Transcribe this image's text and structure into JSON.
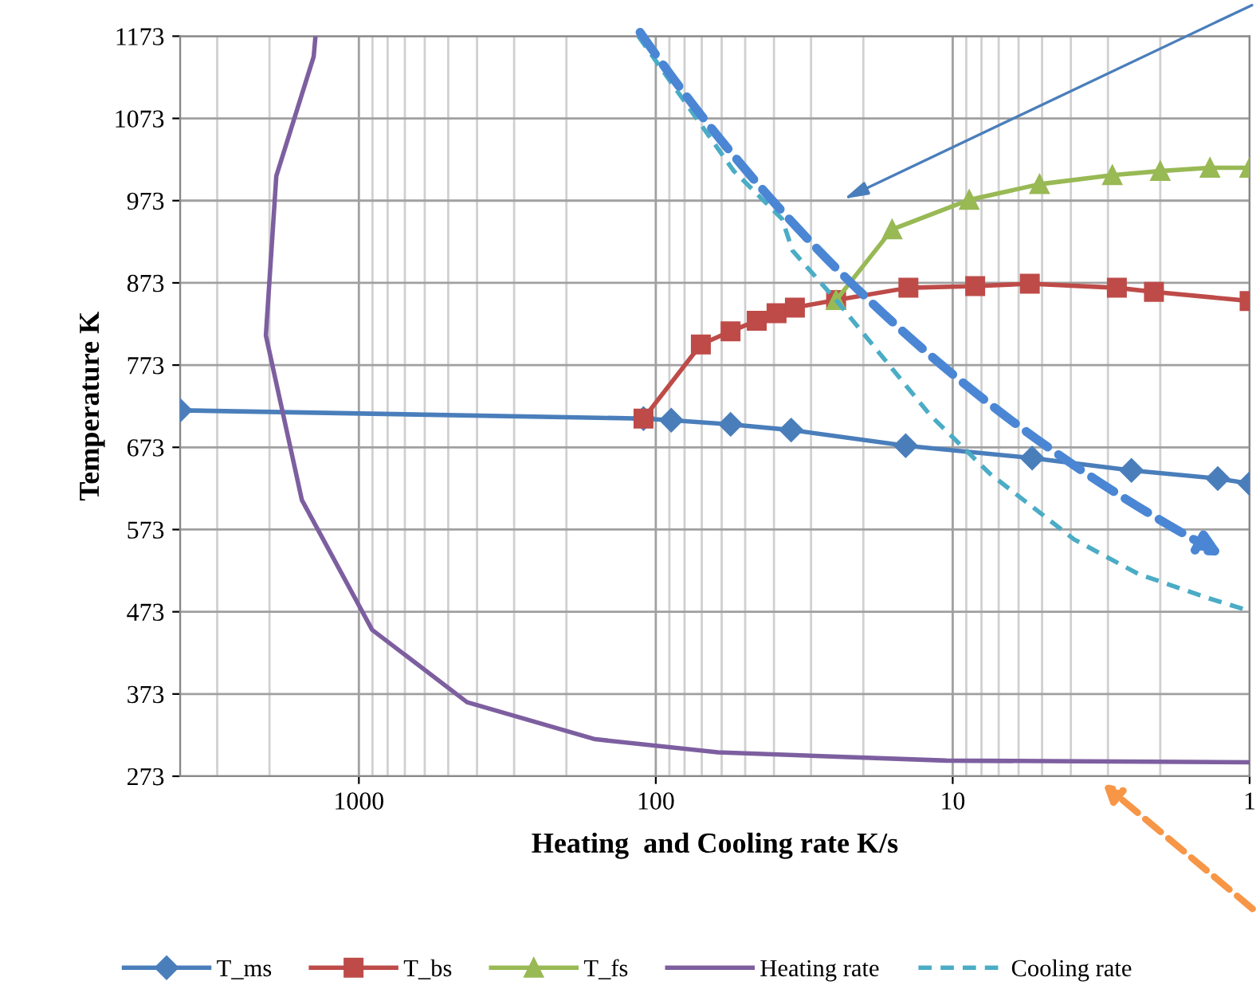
{
  "chart_data": {
    "type": "line",
    "xlabel": "Heating  and Cooling rate K/s",
    "ylabel": "Temperature K",
    "log": "x",
    "xlim": [
      4000,
      1
    ],
    "xticks": [
      1000,
      100,
      10,
      1
    ],
    "ylim": [
      273,
      1173
    ],
    "yticks": [
      273,
      373,
      473,
      573,
      673,
      773,
      873,
      973,
      1073,
      1173
    ],
    "grid": true,
    "legend": "bottom",
    "series": [
      {
        "name": "T_ms",
        "color": "#4a7ebb",
        "marker": "diamond",
        "line_style": "solid",
        "x": [
          4000,
          110,
          88.7,
          56,
          35,
          14.4,
          5.4,
          2.5,
          1.28,
          1
        ],
        "values": [
          718,
          708,
          706,
          701,
          694,
          675,
          660,
          645,
          635,
          629
        ]
      },
      {
        "name": "T_bs",
        "color": "#be4b48",
        "marker": "square",
        "line_style": "solid",
        "x": [
          110,
          70.5,
          56,
          45.7,
          39.2,
          34,
          24.7,
          14.1,
          8.4,
          5.5,
          2.8,
          2.1,
          1
        ],
        "values": [
          708,
          798,
          814,
          827,
          836,
          843,
          852,
          867,
          869,
          872,
          867,
          862,
          851
        ]
      },
      {
        "name": "T_fs",
        "color": "#98b954",
        "marker": "triangle",
        "line_style": "solid",
        "x": [
          24.7,
          16,
          8.8,
          5.1,
          2.9,
          2.0,
          1.36,
          1
        ],
        "values": [
          852,
          938,
          974,
          993,
          1004,
          1009,
          1013,
          1013
        ]
      },
      {
        "name": "Heating rate",
        "color": "#7d5fa0",
        "marker": "none",
        "line_style": "solid",
        "x": [
          1400,
          1420,
          1897,
          2057,
          1556,
          902,
          432,
          160,
          61.7,
          10.5,
          1
        ],
        "values": [
          1173,
          1148,
          1003,
          809,
          609,
          451,
          363,
          318,
          302,
          292,
          290
        ]
      },
      {
        "name": "Cooling rate",
        "color": "#4bacc6",
        "marker": "none",
        "line_style": "dashed",
        "x": [
          114.5,
          54.6,
          37.6,
          34.6,
          24.7,
          11.9,
          7.5,
          3.9,
          2.37,
          1.39,
          1
        ],
        "values": [
          1173,
          1009,
          951,
          912,
          852,
          712,
          641,
          561,
          519,
          490,
          474
        ]
      }
    ]
  }
}
